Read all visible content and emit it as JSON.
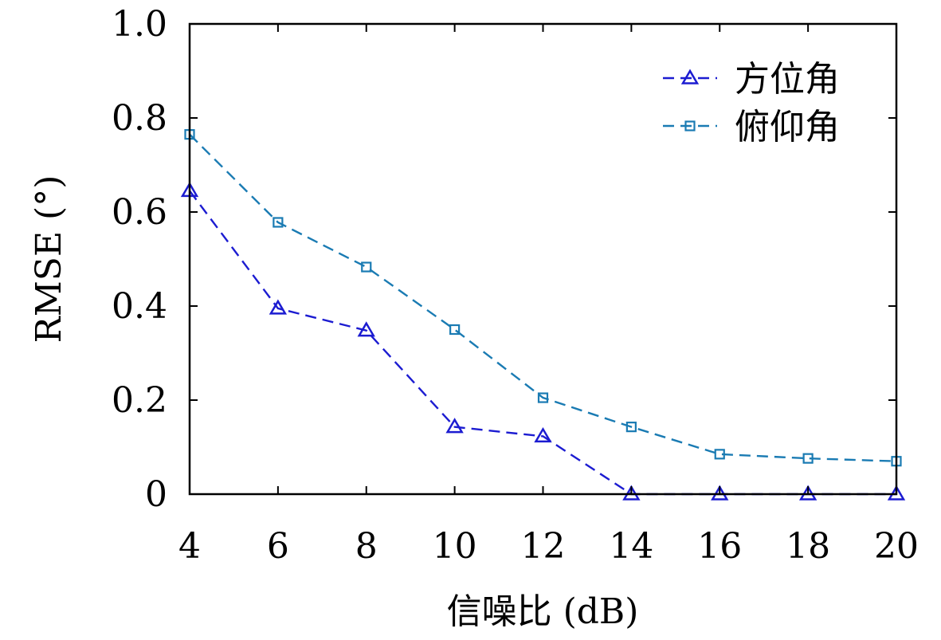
{
  "chart_data": {
    "type": "line",
    "title": "",
    "xlabel": "信噪比 (dB)",
    "ylabel": "RMSE (°)",
    "x": [
      4,
      6,
      8,
      10,
      12,
      14,
      16,
      18,
      20
    ],
    "xlim": [
      4,
      20
    ],
    "ylim": [
      0,
      1.0
    ],
    "xticks": [
      "4",
      "6",
      "8",
      "10",
      "12",
      "14",
      "16",
      "18",
      "20"
    ],
    "yticks": [
      {
        "value": 0,
        "label": "0"
      },
      {
        "value": 0.2,
        "label": "0.2"
      },
      {
        "value": 0.4,
        "label": "0.4"
      },
      {
        "value": 0.6,
        "label": "0.6"
      },
      {
        "value": 0.8,
        "label": "0.8"
      },
      {
        "value": 1.0,
        "label": "1.0"
      }
    ],
    "grid": false,
    "legend_position": "top-right",
    "series": [
      {
        "name": "方位角",
        "values": [
          0.645,
          0.395,
          0.348,
          0.143,
          0.123,
          0.0,
          0.0,
          0.0,
          0.0
        ],
        "color": "#1c1cd1",
        "marker": "triangle",
        "line_style": "dashed"
      },
      {
        "name": "俯仰角",
        "values": [
          0.765,
          0.578,
          0.483,
          0.35,
          0.205,
          0.143,
          0.085,
          0.076,
          0.07
        ],
        "color": "#1a7bb3",
        "marker": "square",
        "line_style": "dashed"
      }
    ]
  }
}
